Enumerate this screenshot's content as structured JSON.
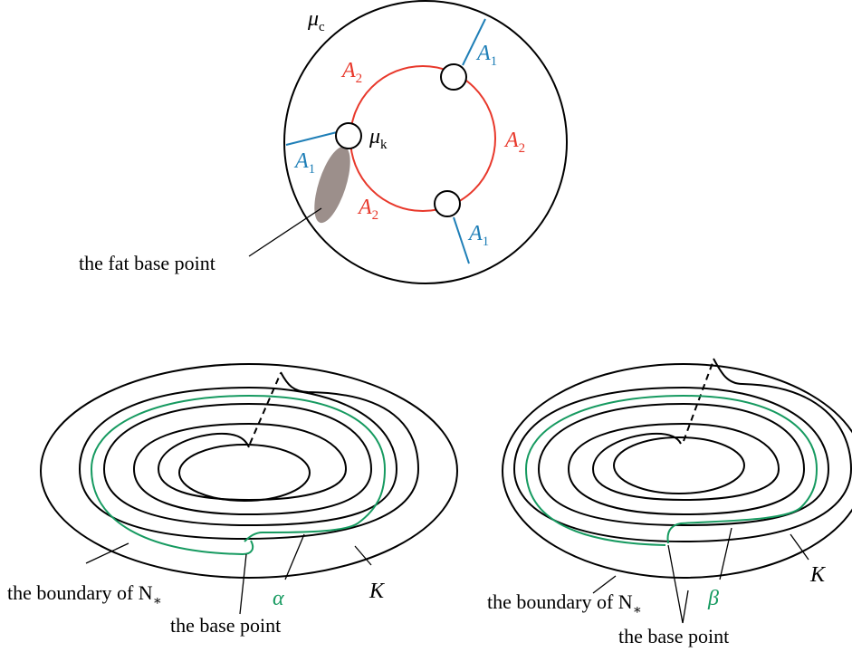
{
  "colors": {
    "ink": "#000000",
    "red_curve": "#e8382b",
    "blue_arc": "#1f7fb7",
    "green_curve": "#169a60",
    "fat_base_point_fill": "#9c8f8b"
  },
  "top_diagram": {
    "outer_label": {
      "main": "μ",
      "sub": "c"
    },
    "inner_label": {
      "main": "μ",
      "sub": "k"
    },
    "arc_labels_red": [
      {
        "main": "A",
        "sub": "2"
      },
      {
        "main": "A",
        "sub": "2"
      },
      {
        "main": "A",
        "sub": "2"
      }
    ],
    "arc_labels_blue": [
      {
        "main": "A",
        "sub": "1"
      },
      {
        "main": "A",
        "sub": "1"
      },
      {
        "main": "A",
        "sub": "1"
      }
    ],
    "fat_base_point_label": "the fat base point"
  },
  "bottom_left": {
    "boundary_label": "the boundary of N",
    "boundary_sub": "∗",
    "knot_label": "K",
    "curve_label": "α",
    "base_point_label": "the base point"
  },
  "bottom_right": {
    "boundary_label": "the boundary of N",
    "boundary_sub": "∗",
    "knot_label": "K",
    "curve_label": "β",
    "base_point_label": "the base point"
  }
}
